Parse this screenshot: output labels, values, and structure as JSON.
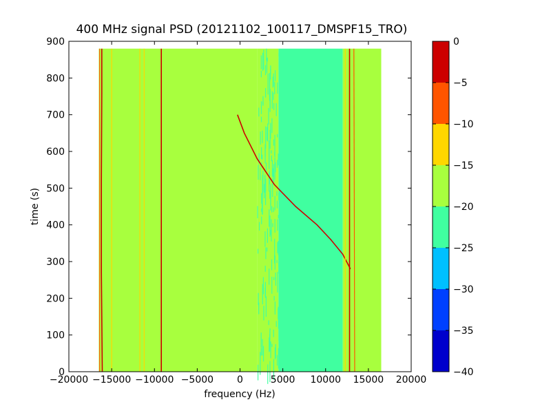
{
  "chart_data": {
    "type": "heatmap",
    "title": "400 MHz signal PSD (20121102_100117_DMSPF15_TRO)",
    "xlabel": "frequency (Hz)",
    "ylabel": "time (s)",
    "xlim": [
      -20000,
      20000
    ],
    "ylim": [
      0,
      900
    ],
    "xticks": [
      -20000,
      -15000,
      -10000,
      -5000,
      0,
      5000,
      10000,
      15000,
      20000
    ],
    "xtick_labels": [
      "−20000",
      "−15000",
      "−10000",
      "−5000",
      "0",
      "5000",
      "10000",
      "15000",
      "20000"
    ],
    "yticks": [
      0,
      100,
      200,
      300,
      400,
      500,
      600,
      700,
      800,
      900
    ],
    "ytick_labels": [
      "0",
      "100",
      "200",
      "300",
      "400",
      "500",
      "600",
      "700",
      "800",
      "900"
    ],
    "data_extent": {
      "x": [
        -16500,
        16500
      ],
      "y": [
        0,
        880
      ]
    },
    "grid": false,
    "colorbar": {
      "levels": [
        -40,
        -35,
        -30,
        -25,
        -20,
        -15,
        -10,
        -5,
        0
      ],
      "tick_labels": [
        "−40",
        "−35",
        "−30",
        "−25",
        "−20",
        "−15",
        "−10",
        "−5",
        "0"
      ],
      "colors": [
        "#0000cc",
        "#0040ff",
        "#00c0ff",
        "#40ffa0",
        "#a8ff3e",
        "#ffd700",
        "#ff5500",
        "#cc0000"
      ]
    },
    "regions": [
      {
        "x": [
          -16500,
          2000
        ],
        "level": "-20 to -15"
      },
      {
        "x": [
          2000,
          4500
        ],
        "level": "mixed -25 to -15"
      },
      {
        "x": [
          4500,
          12000
        ],
        "level": "-25 to -20"
      },
      {
        "x": [
          12000,
          16500
        ],
        "level": "-20 to -15"
      }
    ],
    "traces": [
      {
        "points": [
          [
            -16100,
            0
          ],
          [
            -16200,
            270
          ],
          [
            -16200,
            520
          ],
          [
            -16150,
            760
          ],
          [
            -16150,
            880
          ]
        ],
        "level": "0 to -5"
      },
      {
        "points": [
          [
            -16400,
            0
          ],
          [
            -16400,
            880
          ]
        ],
        "level": "-10 to -5"
      },
      {
        "points": [
          [
            -15000,
            0
          ],
          [
            -15000,
            880
          ]
        ],
        "level": "-15 to -10"
      },
      {
        "points": [
          [
            -11700,
            0
          ],
          [
            -11700,
            880
          ]
        ],
        "level": "-15 to -10"
      },
      {
        "points": [
          [
            -11200,
            0
          ],
          [
            -11200,
            880
          ]
        ],
        "level": "-15 to -10"
      },
      {
        "points": [
          [
            -9200,
            0
          ],
          [
            -9200,
            880
          ]
        ],
        "level": "0 to -5"
      },
      {
        "points": [
          [
            -300,
            700
          ],
          [
            500,
            650
          ],
          [
            2000,
            580
          ],
          [
            4000,
            510
          ],
          [
            6500,
            450
          ],
          [
            9000,
            400
          ],
          [
            10600,
            360
          ],
          [
            12000,
            320
          ],
          [
            12900,
            280
          ]
        ],
        "level": "0 to -5"
      },
      {
        "points": [
          [
            12800,
            0
          ],
          [
            12800,
            880
          ]
        ],
        "level": "0 to -5"
      },
      {
        "points": [
          [
            13400,
            0
          ],
          [
            13300,
            880
          ]
        ],
        "level": "-10 to -5"
      },
      {
        "points": [
          [
            12300,
            0
          ],
          [
            12300,
            880
          ]
        ],
        "level": "-15 to -10"
      }
    ]
  }
}
